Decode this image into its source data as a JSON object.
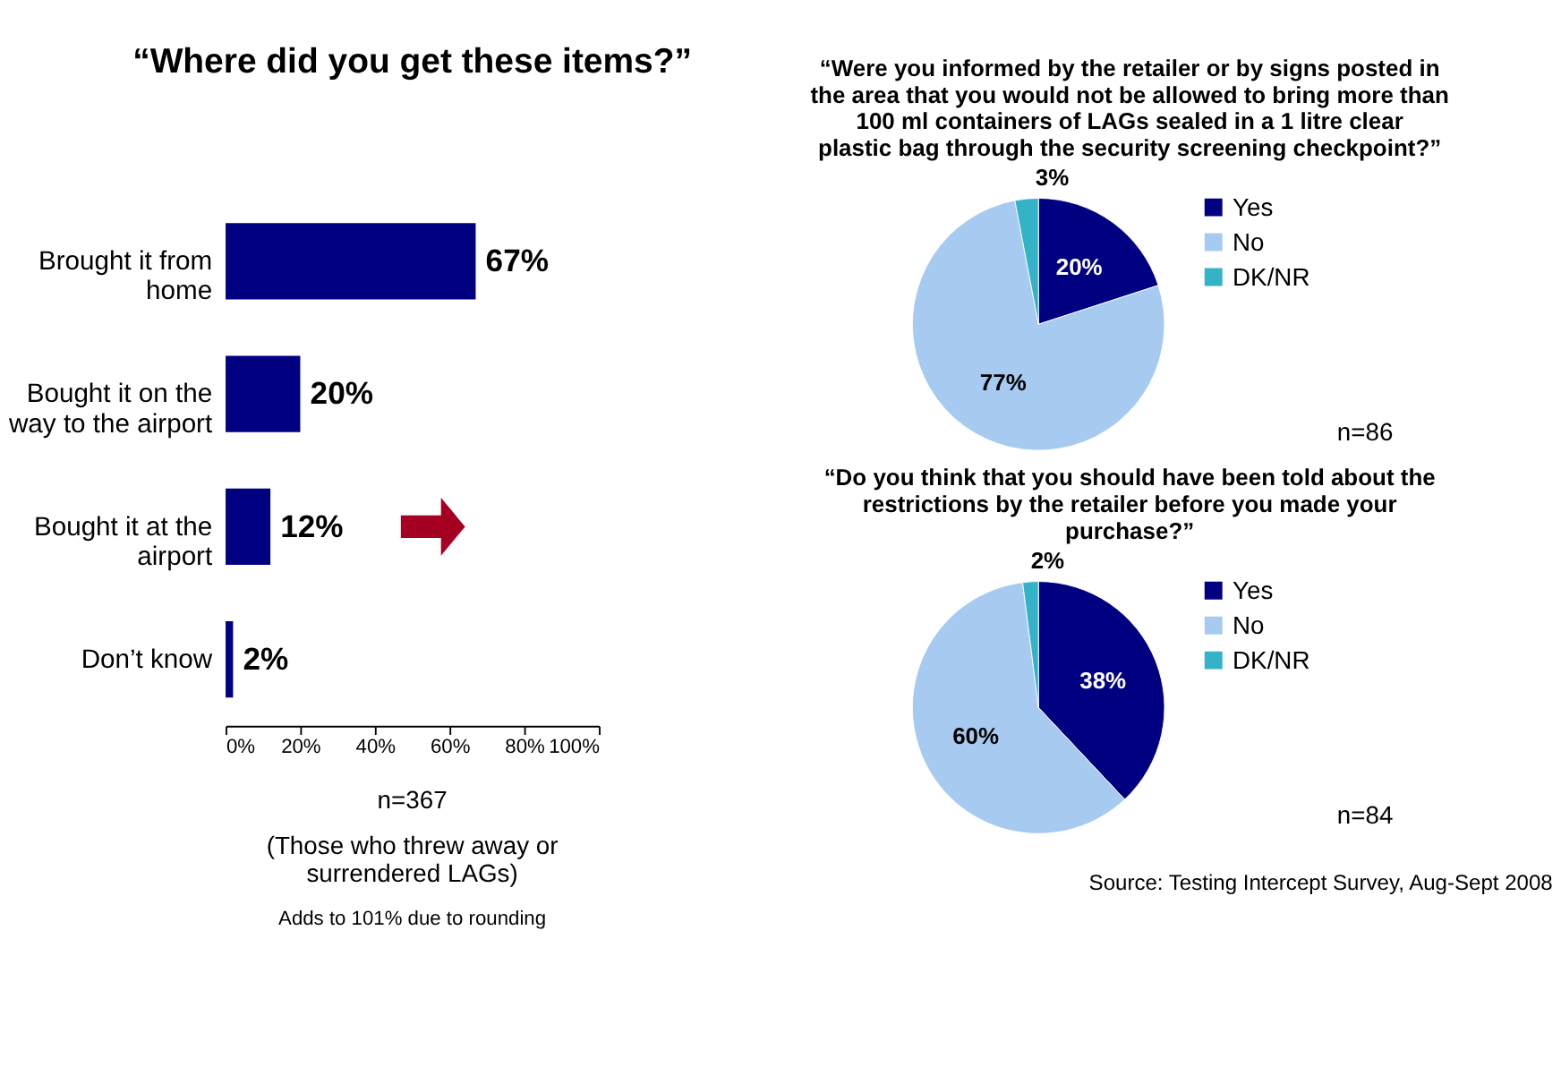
{
  "chart_data": [
    {
      "type": "bar",
      "orientation": "horizontal",
      "title": "“Where did you get these items?”",
      "categories": [
        "Brought it from home",
        "Bought it on the way to the airport",
        "Bought it at the airport",
        "Don’t know"
      ],
      "values": [
        67,
        20,
        12,
        2
      ],
      "color": "#000080",
      "value_labels": [
        "67%",
        "20%",
        "12%",
        "2%"
      ],
      "xlim": [
        0,
        100
      ],
      "xticks": [
        {
          "value": 0,
          "label": "0%"
        },
        {
          "value": 20,
          "label": "20%"
        },
        {
          "value": 40,
          "label": "40%"
        },
        {
          "value": 60,
          "label": "60%"
        },
        {
          "value": 80,
          "label": "80%"
        },
        {
          "value": 100,
          "label": "100%"
        }
      ],
      "grid": false,
      "annotations": [
        "n=367",
        "(Those who threw away or surrendered LAGs)",
        "Adds to 101% due to rounding"
      ]
    },
    {
      "type": "pie",
      "title": "“Were you informed by the retailer or by signs posted in the area that you would not be allowed to bring more than 100 ml containers of LAGs sealed in a 1 litre clear plastic bag through the security screening checkpoint?”",
      "categories": [
        "Yes",
        "No",
        "DK/NR"
      ],
      "values": [
        20,
        77,
        3
      ],
      "colors": [
        "#000080",
        "#a6caf0",
        "#33b2c8"
      ],
      "value_labels": [
        "20%",
        "77%",
        "3%"
      ],
      "legend": "right",
      "annotations": [
        "n=86"
      ]
    },
    {
      "type": "pie",
      "title": "“Do you think that you should have been told about the restrictions by the retailer before you made your purchase?”",
      "categories": [
        "Yes",
        "No",
        "DK/NR"
      ],
      "values": [
        38,
        60,
        2
      ],
      "colors": [
        "#000080",
        "#a6caf0",
        "#33b2c8"
      ],
      "value_labels": [
        "38%",
        "60%",
        "2%"
      ],
      "legend": "right",
      "annotations": [
        "n=84",
        "Source: Testing Intercept Survey, Aug-Sept 2008"
      ]
    }
  ]
}
